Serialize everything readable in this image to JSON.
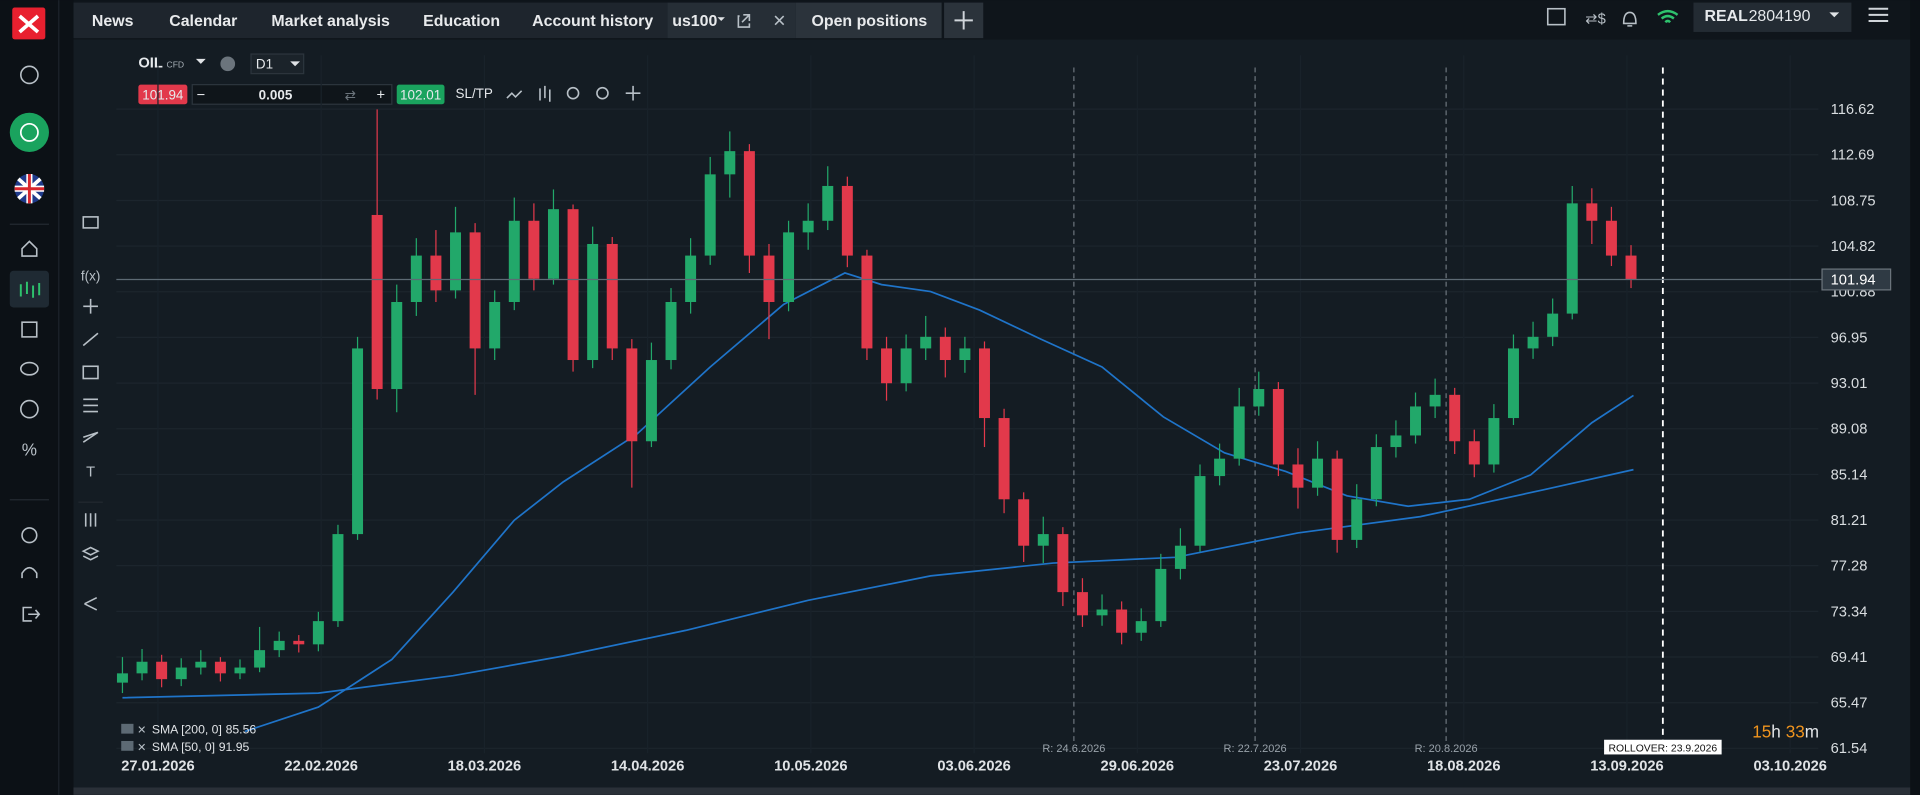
{
  "nav": {
    "tabs": [
      "News",
      "Calendar",
      "Market analysis",
      "Education",
      "Account history"
    ],
    "instrument_tab": "us100",
    "open_positions": "Open positions",
    "account_type": "REAL",
    "account_number": "2804190"
  },
  "chart": {
    "type": "candlestick",
    "symbol": "OIL",
    "symbol_tag": "CFD",
    "timeframe": "D1",
    "sell_price": "101.94",
    "lot": "0.005",
    "buy_price": "102.01",
    "sltp": "SL/TP",
    "ylim": [
      61.54,
      116.62
    ],
    "yticks": [
      116.62,
      112.69,
      108.75,
      104.82,
      100.88,
      96.95,
      93.01,
      89.08,
      85.14,
      81.21,
      77.28,
      73.34,
      69.41,
      65.47,
      61.54
    ],
    "xlim": [
      -2.5,
      88.5
    ],
    "dates": [
      "27.01.2026",
      "22.02.2026",
      "18.03.2026",
      "14.04.2026",
      "10.05.2026",
      "03.06.2026",
      "29.06.2026",
      "23.07.2026",
      "18.08.2026",
      "13.09.2026",
      "03.10.2026"
    ],
    "last_price": 101.94,
    "up_color": "#22a86a",
    "down_color": "#e2394b",
    "candles": [
      [
        67.2,
        69.4,
        66.3,
        68.0
      ],
      [
        68.0,
        70.1,
        67.4,
        69.0
      ],
      [
        69.0,
        69.6,
        66.8,
        67.5
      ],
      [
        67.5,
        69.3,
        66.9,
        68.5
      ],
      [
        68.5,
        70.0,
        67.9,
        69.0
      ],
      [
        69.0,
        69.4,
        67.3,
        68.0
      ],
      [
        68.0,
        69.2,
        67.5,
        68.5
      ],
      [
        68.5,
        72.0,
        68.1,
        70.0
      ],
      [
        70.0,
        71.6,
        69.4,
        70.8
      ],
      [
        70.8,
        71.3,
        69.8,
        70.5
      ],
      [
        70.5,
        73.3,
        69.9,
        72.5
      ],
      [
        72.5,
        80.8,
        72.0,
        80.0
      ],
      [
        80.0,
        97.0,
        79.5,
        96.0
      ],
      [
        107.5,
        116.6,
        91.6,
        92.5
      ],
      [
        92.5,
        101.5,
        90.5,
        100.0
      ],
      [
        100.0,
        105.5,
        98.8,
        104.0
      ],
      [
        104.0,
        106.2,
        100.0,
        101.0
      ],
      [
        101.0,
        108.2,
        100.3,
        106.0
      ],
      [
        106.0,
        106.8,
        92.0,
        96.0
      ],
      [
        96.0,
        101.0,
        95.0,
        100.0
      ],
      [
        100.0,
        109.0,
        99.3,
        107.0
      ],
      [
        107.0,
        108.5,
        101.0,
        102.0
      ],
      [
        102.0,
        109.7,
        101.5,
        108.0
      ],
      [
        108.0,
        108.4,
        94.0,
        95.0
      ],
      [
        95.0,
        106.5,
        94.3,
        105.0
      ],
      [
        105.0,
        105.6,
        95.0,
        96.0
      ],
      [
        96.0,
        96.8,
        84.0,
        88.0
      ],
      [
        88.0,
        96.5,
        87.5,
        95.0
      ],
      [
        95.0,
        101.2,
        94.2,
        100.0
      ],
      [
        100.0,
        105.5,
        99.0,
        104.0
      ],
      [
        104.0,
        112.5,
        103.2,
        111.0
      ],
      [
        111.0,
        114.7,
        109.0,
        113.0
      ],
      [
        113.0,
        113.6,
        102.5,
        104.0
      ],
      [
        104.0,
        105.0,
        96.8,
        100.0
      ],
      [
        100.0,
        107.0,
        99.2,
        106.0
      ],
      [
        106.0,
        108.5,
        104.5,
        107.0
      ],
      [
        107.0,
        111.7,
        106.2,
        110.0
      ],
      [
        110.0,
        110.8,
        103.0,
        104.0
      ],
      [
        104.0,
        104.5,
        95.0,
        96.0
      ],
      [
        96.0,
        97.0,
        91.5,
        93.0
      ],
      [
        93.0,
        97.2,
        92.3,
        96.0
      ],
      [
        96.0,
        98.8,
        95.0,
        97.0
      ],
      [
        97.0,
        97.8,
        93.5,
        95.0
      ],
      [
        95.0,
        97.0,
        93.9,
        96.0
      ],
      [
        96.0,
        96.6,
        87.5,
        90.0
      ],
      [
        90.0,
        90.8,
        81.8,
        83.0
      ],
      [
        83.0,
        83.6,
        77.6,
        79.0
      ],
      [
        79.0,
        81.5,
        77.5,
        80.0
      ],
      [
        80.0,
        80.6,
        73.8,
        75.0
      ],
      [
        75.0,
        76.2,
        72.0,
        73.0
      ],
      [
        73.0,
        74.8,
        72.1,
        73.5
      ],
      [
        73.5,
        74.2,
        70.5,
        71.5
      ],
      [
        71.5,
        73.6,
        70.8,
        72.5
      ],
      [
        72.5,
        78.3,
        72.0,
        77.0
      ],
      [
        77.0,
        80.5,
        76.1,
        79.0
      ],
      [
        79.0,
        86.0,
        78.5,
        85.0
      ],
      [
        85.0,
        87.8,
        84.2,
        86.5
      ],
      [
        86.5,
        92.6,
        85.9,
        91.0
      ],
      [
        91.0,
        94.0,
        90.2,
        92.5
      ],
      [
        92.5,
        93.1,
        85.0,
        86.0
      ],
      [
        86.0,
        87.4,
        82.2,
        84.0
      ],
      [
        84.0,
        88.0,
        83.3,
        86.5
      ],
      [
        86.5,
        87.2,
        78.4,
        79.5
      ],
      [
        79.5,
        84.3,
        78.8,
        83.0
      ],
      [
        83.0,
        88.6,
        82.4,
        87.5
      ],
      [
        87.5,
        89.8,
        86.6,
        88.5
      ],
      [
        88.5,
        92.2,
        87.8,
        91.0
      ],
      [
        91.0,
        93.4,
        90.0,
        92.0
      ],
      [
        92.0,
        92.6,
        86.9,
        88.0
      ],
      [
        88.0,
        89.0,
        84.9,
        86.0
      ],
      [
        86.0,
        91.2,
        85.3,
        90.0
      ],
      [
        90.0,
        97.2,
        89.4,
        96.0
      ],
      [
        96.0,
        98.3,
        95.1,
        97.0
      ],
      [
        97.0,
        100.3,
        96.2,
        99.0
      ],
      [
        99.0,
        110.0,
        98.5,
        108.5
      ],
      [
        108.5,
        109.8,
        105.0,
        107.0
      ],
      [
        107.0,
        108.2,
        103.1,
        104.0
      ],
      [
        104.0,
        104.9,
        101.2,
        101.94
      ]
    ],
    "sma200": {
      "name": "SMA [200, 0]",
      "color": "#1f74c9",
      "x": [
        0,
        10,
        16.875,
        22.5,
        28.75,
        35,
        41.25,
        47.5,
        53.75,
        60,
        66.25,
        72.5,
        77.125
      ],
      "values": [
        65.9,
        66.3,
        67.8,
        69.5,
        71.7,
        74.3,
        76.4,
        77.5,
        78.0,
        80.1,
        81.5,
        83.8,
        85.56
      ]
    },
    "sma50": {
      "name": "SMA [50, 0]",
      "color": "#1f74c9",
      "x": [
        6.25,
        10,
        13.75,
        16.875,
        20,
        22.5,
        26.25,
        30,
        33.75,
        36.875,
        38.75,
        41.25,
        43.75,
        46.875,
        50,
        53.125,
        56.25,
        59.375,
        62.5,
        65.625,
        68.75,
        71.875,
        75,
        77.125
      ],
      "values": [
        63.0,
        65.1,
        69.2,
        75.0,
        81.2,
        84.5,
        88.6,
        94.4,
        99.8,
        102.5,
        101.5,
        100.9,
        99.3,
        96.8,
        94.4,
        90.1,
        87.0,
        85.4,
        83.3,
        82.4,
        83.0,
        85.1,
        89.6,
        91.95
      ]
    },
    "rollovers": [
      "R: 24.6.2026",
      "R: 22.7.2026",
      "R: 20.8.2026"
    ],
    "next_rollover": "ROLLOVER: 23.9.2026",
    "countdown": [
      "15",
      "h",
      "33",
      "m"
    ]
  }
}
